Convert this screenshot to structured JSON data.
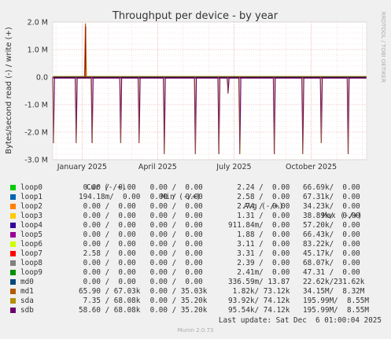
{
  "chart_data": {
    "type": "line",
    "title": "Throughput per device - by year",
    "ylabel": "Bytes/second read (-) / write (+)",
    "side_label": "RRDTOOL / TOBI OETIKER",
    "ylim": [
      -3000000,
      2000000
    ],
    "y_ticks": [
      {
        "value": 2000000,
        "label": "2.0 M"
      },
      {
        "value": 1000000,
        "label": "1.0 M"
      },
      {
        "value": 0,
        "label": "0.0"
      },
      {
        "value": -1000000,
        "label": "-1.0 M"
      },
      {
        "value": -2000000,
        "label": "-2.0 M"
      },
      {
        "value": -3000000,
        "label": "-3.0 M"
      }
    ],
    "x_range": [
      "2024-11-27",
      "2025-12-06"
    ],
    "x_ticks": [
      {
        "date": "2025-01-01",
        "label": "January 2025"
      },
      {
        "date": "2025-04-01",
        "label": "April 2025"
      },
      {
        "date": "2025-07-01",
        "label": "July 2025"
      },
      {
        "date": "2025-10-01",
        "label": "October 2025"
      }
    ],
    "spikes": [
      {
        "date": "2024-11-27",
        "value": -2400000
      },
      {
        "date": "2024-12-25",
        "value": -2400000
      },
      {
        "date": "2025-01-05",
        "value": 1950000
      },
      {
        "date": "2025-01-13",
        "value": -2400000
      },
      {
        "date": "2025-02-16",
        "value": -2400000
      },
      {
        "date": "2025-03-10",
        "value": -2400000
      },
      {
        "date": "2025-04-09",
        "value": -2800000
      },
      {
        "date": "2025-05-16",
        "value": -2800000
      },
      {
        "date": "2025-06-13",
        "value": -2800000
      },
      {
        "date": "2025-06-24",
        "value": -600000
      },
      {
        "date": "2025-07-08",
        "value": -2800000
      },
      {
        "date": "2025-08-18",
        "value": -2800000
      },
      {
        "date": "2025-09-21",
        "value": -2800000
      },
      {
        "date": "2025-10-13",
        "value": -2400000
      },
      {
        "date": "2025-11-14",
        "value": -2800000
      }
    ],
    "legend_headers": {
      "cur": "Cur (-/+)",
      "min": "Min (-/+)",
      "avg": "Avg (-/+)",
      "max": "Max (-/+)"
    },
    "series": [
      {
        "name": "loop0",
        "color": "#00cc00",
        "cur": " 0.00 /  0.00",
        "min": " 0.00 /  0.00",
        "avg": "  2.24 /  0.00",
        "max": "66.69k/  0.00"
      },
      {
        "name": "loop1",
        "color": "#0066b3",
        "cur": "194.18m/  0.00",
        "min": " 0.00 /  0.00",
        "avg": "  2.58 /  0.00",
        "max": "67.31k/  0.00"
      },
      {
        "name": "loop2",
        "color": "#ff8000",
        "cur": " 0.00 /  0.00",
        "min": " 0.00 /  0.00",
        "avg": "  2.74 /  0.00",
        "max": "34.23k/  0.00"
      },
      {
        "name": "loop3",
        "color": "#ffcc00",
        "cur": " 0.00 /  0.00",
        "min": " 0.00 /  0.00",
        "avg": "  1.31 /  0.00",
        "max": "38.89k/  0.00"
      },
      {
        "name": "loop4",
        "color": "#330099",
        "cur": " 0.00 /  0.00",
        "min": " 0.00 /  0.00",
        "avg": "911.84m/  0.00",
        "max": "57.20k/  0.00"
      },
      {
        "name": "loop5",
        "color": "#990099",
        "cur": " 0.00 /  0.00",
        "min": " 0.00 /  0.00",
        "avg": "  1.88 /  0.00",
        "max": "66.43k/  0.00"
      },
      {
        "name": "loop6",
        "color": "#ccff00",
        "cur": " 0.00 /  0.00",
        "min": " 0.00 /  0.00",
        "avg": "  3.11 /  0.00",
        "max": "83.22k/  0.00"
      },
      {
        "name": "loop7",
        "color": "#ff0000",
        "cur": " 2.58 /  0.00",
        "min": " 0.00 /  0.00",
        "avg": "  3.31 /  0.00",
        "max": "45.17k/  0.00"
      },
      {
        "name": "loop8",
        "color": "#808080",
        "cur": " 0.00 /  0.00",
        "min": " 0.00 /  0.00",
        "avg": "  2.39 /  0.00",
        "max": "68.07k/  0.00"
      },
      {
        "name": "loop9",
        "color": "#008f00",
        "cur": " 0.00 /  0.00",
        "min": " 0.00 /  0.00",
        "avg": "  2.41m/  0.00",
        "max": "47.31 /  0.00"
      },
      {
        "name": "md0",
        "color": "#00487d",
        "cur": " 0.00 /  0.00",
        "min": " 0.00 /  0.00",
        "avg": "336.59m/ 13.87",
        "max": "22.62k/231.62k"
      },
      {
        "name": "md1",
        "color": "#b35a00",
        "cur": "65.90 / 67.03k",
        "min": " 0.00 / 35.03k",
        "avg": " 1.82k/ 73.12k",
        "max": "34.15M/  8.32M"
      },
      {
        "name": "sda",
        "color": "#b38f00",
        "cur": " 7.35 / 68.08k",
        "min": " 0.00 / 35.20k",
        "avg": "93.92k/ 74.12k",
        "max": "195.99M/  8.55M"
      },
      {
        "name": "sdb",
        "color": "#6b006b",
        "cur": "58.60 / 68.08k",
        "min": " 0.00 / 35.20k",
        "avg": "95.54k/ 74.12k",
        "max": "195.99M/  8.55M"
      }
    ]
  },
  "last_update": "Last update: Sat Dec  6 01:00:04 2025",
  "footer": "Munin 2.0.73"
}
